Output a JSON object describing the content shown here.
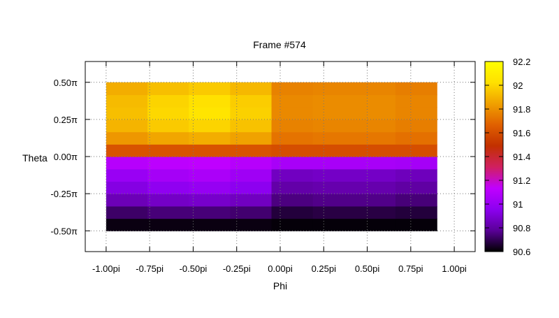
{
  "chart_data": {
    "type": "heatmap",
    "title": "Frame #574",
    "xlabel": "Phi",
    "ylabel": "Theta",
    "xlim": [
      -1.12,
      1.12
    ],
    "ylim": [
      -0.64,
      0.64
    ],
    "x_ticks": [
      {
        "value": -1.0,
        "label": "-1.00pi"
      },
      {
        "value": -0.75,
        "label": "-0.75pi"
      },
      {
        "value": -0.5,
        "label": "-0.50pi"
      },
      {
        "value": -0.25,
        "label": "-0.25pi"
      },
      {
        "value": 0.0,
        "label": "0.00pi"
      },
      {
        "value": 0.25,
        "label": "0.25pi"
      },
      {
        "value": 0.5,
        "label": "0.50pi"
      },
      {
        "value": 0.75,
        "label": "0.75pi"
      },
      {
        "value": 1.0,
        "label": "1.00pi"
      }
    ],
    "y_ticks": [
      {
        "value": 0.5,
        "label": "0.50π"
      },
      {
        "value": 0.25,
        "label": "0.25π"
      },
      {
        "value": 0.0,
        "label": "0.00π"
      },
      {
        "value": -0.25,
        "label": "-0.25π"
      },
      {
        "value": -0.5,
        "label": "-0.50π"
      }
    ],
    "grid": true,
    "x_range": [
      -1.0,
      0.9
    ],
    "y_range": [
      -0.5,
      0.5
    ],
    "colorbar": {
      "min": 90.6,
      "max": 92.2,
      "ticks": [
        "90.6",
        "90.8",
        "91",
        "91.2",
        "91.4",
        "91.6",
        "91.8",
        "92",
        "92.2"
      ],
      "colors": [
        "#000000",
        "#5a0098",
        "#8c00f0",
        "#c000ff",
        "#d02060",
        "#c23000",
        "#e06000",
        "#f0a000",
        "#ffe000",
        "#ffff00"
      ]
    },
    "values": [
      [
        90.62,
        90.62,
        90.62,
        90.62,
        90.61,
        90.61,
        90.61,
        90.61
      ],
      [
        90.72,
        90.74,
        90.74,
        90.73,
        90.67,
        90.68,
        90.68,
        90.67
      ],
      [
        90.84,
        90.87,
        90.88,
        90.86,
        90.75,
        90.76,
        90.76,
        90.74
      ],
      [
        90.93,
        90.97,
        90.99,
        90.96,
        90.81,
        90.82,
        90.82,
        90.8
      ],
      [
        91.0,
        91.04,
        91.06,
        91.02,
        90.86,
        90.87,
        90.87,
        90.85
      ],
      [
        91.1,
        91.12,
        91.13,
        91.1,
        91.05,
        91.05,
        91.05,
        91.04
      ],
      [
        91.62,
        91.62,
        91.62,
        91.62,
        91.6,
        91.6,
        91.6,
        91.6
      ],
      [
        91.82,
        91.86,
        91.88,
        91.85,
        91.72,
        91.73,
        91.73,
        91.71
      ],
      [
        91.9,
        91.96,
        91.99,
        91.94,
        91.76,
        91.77,
        91.77,
        91.75
      ],
      [
        91.93,
        92.0,
        92.05,
        91.98,
        91.78,
        91.79,
        91.79,
        91.77
      ],
      [
        91.92,
        91.99,
        92.03,
        91.97,
        91.78,
        91.79,
        91.79,
        91.77
      ],
      [
        91.88,
        91.93,
        91.96,
        91.91,
        91.76,
        91.77,
        91.77,
        91.75
      ]
    ]
  }
}
